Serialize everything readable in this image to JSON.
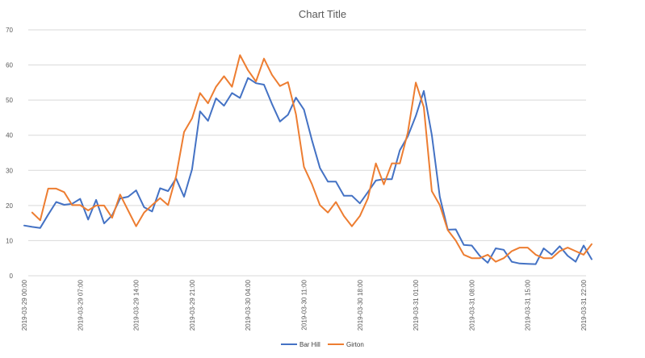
{
  "chart_data": {
    "type": "line",
    "title": "Chart Title",
    "xlabel": "",
    "ylabel": "",
    "ylim": [
      0,
      70
    ],
    "y_ticks": [
      0,
      10,
      20,
      30,
      40,
      50,
      60,
      70
    ],
    "grid": true,
    "legend_position": "bottom",
    "x_tick_labels": [
      "2019-03-29 00:00",
      "2019-03-29 07:00",
      "2019-03-29 14:00",
      "2019-03-29 21:00",
      "2019-03-30 04:00",
      "2019-03-30 11:00",
      "2019-03-30 18:00",
      "2019-03-31 01:00",
      "2019-03-31 08:00",
      "2019-03-31 15:00",
      "2019-03-31 22:00"
    ],
    "x_interval_hours": 1,
    "series": [
      {
        "name": "Bar Hill",
        "color": "#4472C4",
        "values": [
          14.3,
          13.9,
          13.6,
          17.4,
          21,
          20.2,
          20.5,
          21.9,
          16,
          21.6,
          14.9,
          17.2,
          22,
          22.5,
          24.3,
          19.5,
          18.3,
          24.9,
          24.1,
          27.7,
          22.5,
          30.3,
          46.8,
          44.1,
          50.5,
          48.4,
          52,
          50.6,
          56.3,
          54.8,
          54.4,
          48.9,
          43.9,
          45.8,
          50.7,
          47.3,
          38.6,
          30.7,
          26.8,
          26.8,
          22.8,
          22.8,
          20.6,
          23.8,
          27.1,
          27.5,
          27.5,
          35.7,
          39.7,
          45.5,
          52.6,
          40.1,
          22.5,
          13.1,
          13.2,
          8.8,
          8.6,
          5.7,
          3.7,
          7.8,
          7.4,
          4,
          3.5,
          3.4,
          3.3,
          7.8,
          6,
          8.4,
          5.7,
          4,
          8.6,
          4.7
        ]
      },
      {
        "name": "Girton",
        "color": "#ED7D31",
        "values": [
          null,
          18,
          15.8,
          24.8,
          24.8,
          23.8,
          20.1,
          20.1,
          18.6,
          20,
          20,
          16.5,
          23.1,
          18.6,
          14.1,
          18,
          20.1,
          22.1,
          20.1,
          28.3,
          40.9,
          44.8,
          52,
          49.1,
          53.8,
          56.8,
          53.8,
          62.8,
          58.5,
          55.3,
          61.8,
          57.2,
          54,
          55.1,
          46,
          31,
          26.1,
          20.1,
          18,
          21,
          17,
          14.1,
          17,
          22,
          32,
          26,
          32,
          32,
          40.8,
          55,
          48,
          24.1,
          20.1,
          13,
          10,
          6,
          5,
          5,
          6,
          4,
          5,
          7,
          8,
          8,
          6,
          5,
          5,
          7,
          8,
          7,
          6,
          9
        ]
      }
    ]
  }
}
